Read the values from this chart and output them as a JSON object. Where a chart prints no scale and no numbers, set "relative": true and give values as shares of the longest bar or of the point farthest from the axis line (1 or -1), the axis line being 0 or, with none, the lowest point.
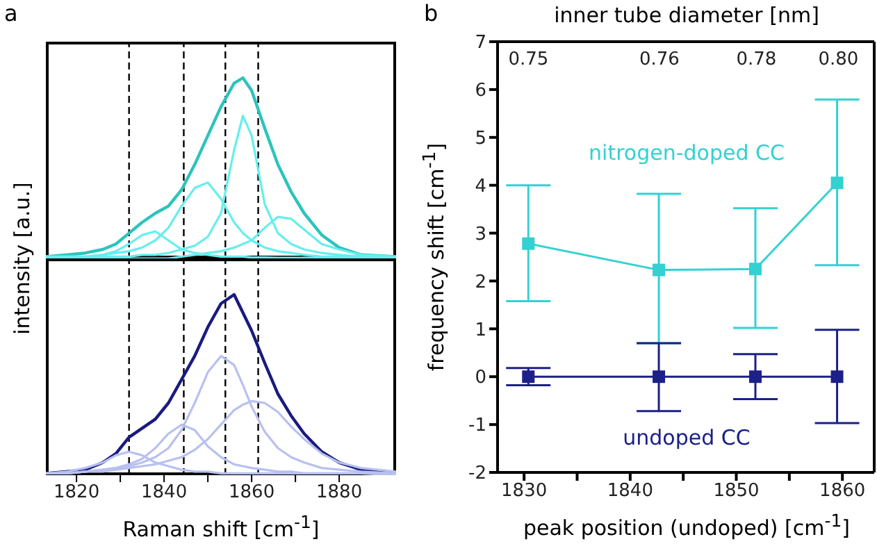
{
  "chart_data": [
    {
      "type": "line",
      "title": "a",
      "ylabel": "intensity [a.u.]",
      "relative": true,
      "x": [
        1813,
        1818,
        1822,
        1826,
        1829,
        1832,
        1835,
        1838,
        1841,
        1844,
        1847,
        1850,
        1853,
        1856,
        1858,
        1860,
        1863,
        1866,
        1869,
        1872,
        1876,
        1880,
        1885,
        1893
      ],
      "xlim": [
        1813,
        1893
      ],
      "xticks": [
        1820,
        1840,
        1860,
        1880
      ],
      "tick_labels": false,
      "marker": "none",
      "line_style": "solid",
      "series": [
        {
          "color": "#2cc4bc",
          "values": [
            0.01,
            0.02,
            0.03,
            0.05,
            0.08,
            0.14,
            0.2,
            0.25,
            0.29,
            0.38,
            0.52,
            0.68,
            0.84,
            0.97,
            1.0,
            0.93,
            0.72,
            0.52,
            0.37,
            0.25,
            0.13,
            0.06,
            0.02,
            0.01
          ]
        },
        {
          "color": "#66eeee",
          "values": [
            0.003,
            0.005,
            0.01,
            0.02,
            0.04,
            0.08,
            0.13,
            0.15,
            0.1,
            0.05,
            0.03,
            0.02,
            0.01,
            0.01,
            0.01,
            0.005,
            0.005,
            0.003,
            0.003,
            0.003,
            0.003,
            0.003,
            0.003,
            0.003
          ]
        },
        {
          "color": "#66eeee",
          "values": [
            0.01,
            0.01,
            0.01,
            0.02,
            0.03,
            0.04,
            0.06,
            0.1,
            0.17,
            0.29,
            0.39,
            0.42,
            0.33,
            0.2,
            0.14,
            0.1,
            0.06,
            0.04,
            0.03,
            0.02,
            0.01,
            0.01,
            0.01,
            0
          ]
        },
        {
          "color": "#66eeee",
          "values": [
            0.01,
            0.01,
            0.01,
            0.01,
            0.01,
            0.01,
            0.02,
            0.02,
            0.03,
            0.05,
            0.07,
            0.12,
            0.25,
            0.6,
            0.79,
            0.68,
            0.3,
            0.14,
            0.08,
            0.05,
            0.03,
            0.02,
            0.01,
            0.01
          ]
        },
        {
          "color": "#66eeee",
          "values": [
            0,
            0,
            0,
            0,
            0,
            0,
            0,
            0,
            0,
            0.01,
            0.02,
            0.03,
            0.04,
            0.06,
            0.08,
            0.1,
            0.17,
            0.23,
            0.22,
            0.16,
            0.08,
            0.05,
            0.02,
            0.01
          ]
        }
      ],
      "ref_lines": [
        {
          "axis": "x",
          "value": 1832,
          "color": "#000000",
          "line_style": "dashed"
        },
        {
          "axis": "x",
          "value": 1844.5,
          "color": "#000000",
          "line_style": "dashed"
        },
        {
          "axis": "x",
          "value": 1854,
          "color": "#000000",
          "line_style": "dashed"
        },
        {
          "axis": "x",
          "value": 1861.5,
          "color": "#000000",
          "line_style": "dashed"
        }
      ]
    },
    {
      "type": "line",
      "xlabel": "Raman shift [cm$^{-1}$]",
      "relative": true,
      "x": [
        1813,
        1818,
        1822,
        1826,
        1829,
        1832,
        1835,
        1838,
        1841,
        1844,
        1847,
        1850,
        1853,
        1856,
        1858,
        1860,
        1863,
        1866,
        1869,
        1872,
        1876,
        1880,
        1885,
        1893
      ],
      "xlim": [
        1813,
        1893
      ],
      "xticks": [
        1820,
        {
          "value": 1830,
          "label": null
        },
        1840,
        {
          "value": 1850,
          "label": null
        },
        1860,
        {
          "value": 1870,
          "label": null
        },
        1880
      ],
      "tick_labels": "x",
      "marker": "none",
      "line_style": "solid",
      "series": [
        {
          "color": "#1a1a80",
          "values": [
            0.01,
            0.02,
            0.03,
            0.07,
            0.12,
            0.21,
            0.26,
            0.31,
            0.4,
            0.53,
            0.66,
            0.82,
            0.95,
            1.0,
            0.9,
            0.8,
            0.62,
            0.45,
            0.33,
            0.23,
            0.13,
            0.07,
            0.03,
            0.01
          ]
        },
        {
          "color": "#b8c0f0",
          "values": [
            0.01,
            0.02,
            0.04,
            0.07,
            0.11,
            0.13,
            0.11,
            0.07,
            0.05,
            0.03,
            0.02,
            0.02,
            0.01,
            0.01,
            0.01,
            0.01,
            0.01,
            0.01,
            0.01,
            0.01,
            0.01,
            0.01,
            0.01,
            0
          ]
        },
        {
          "color": "#b8c0f0",
          "values": [
            0.01,
            0.01,
            0.02,
            0.03,
            0.04,
            0.06,
            0.09,
            0.15,
            0.23,
            0.28,
            0.25,
            0.16,
            0.1,
            0.06,
            0.05,
            0.04,
            0.03,
            0.02,
            0.02,
            0.01,
            0.01,
            0.01,
            0.01,
            0.01
          ]
        },
        {
          "color": "#b8c0f0",
          "values": [
            0.01,
            0.01,
            0.02,
            0.03,
            0.04,
            0.05,
            0.07,
            0.1,
            0.15,
            0.25,
            0.4,
            0.57,
            0.66,
            0.61,
            0.5,
            0.38,
            0.24,
            0.15,
            0.1,
            0.07,
            0.04,
            0.03,
            0.02,
            0.01
          ]
        },
        {
          "color": "#b8c0f0",
          "values": [
            0.01,
            0.01,
            0.02,
            0.02,
            0.03,
            0.04,
            0.05,
            0.06,
            0.08,
            0.1,
            0.14,
            0.2,
            0.28,
            0.36,
            0.39,
            0.41,
            0.4,
            0.35,
            0.27,
            0.2,
            0.12,
            0.07,
            0.04,
            0.02
          ]
        }
      ],
      "ref_lines": [
        {
          "axis": "x",
          "value": 1832,
          "color": "#000000",
          "line_style": "dashed"
        },
        {
          "axis": "x",
          "value": 1844.5,
          "color": "#000000",
          "line_style": "dashed"
        },
        {
          "axis": "x",
          "value": 1854,
          "color": "#000000",
          "line_style": "dashed"
        },
        {
          "axis": "x",
          "value": 1861.5,
          "color": "#000000",
          "line_style": "dashed"
        }
      ]
    },
    {
      "type": "line",
      "title": "b",
      "xlabel": "peak position (undoped) [cm$^{-1}$]",
      "ylabel": "frequency shift [cm$^{-1}$]",
      "x2label": "inner tube diameter [nm]",
      "x": [
        1830.4,
        1842.7,
        1851.8,
        1859.5
      ],
      "xlim": [
        1827.5,
        1863
      ],
      "xticks": [
        1830,
        {
          "value": 1835,
          "label": null
        },
        1840,
        {
          "value": 1845,
          "label": null
        },
        1850,
        {
          "value": 1855,
          "label": null
        },
        1860
      ],
      "annotations": [
        "0.75",
        "0.76",
        "0.78",
        "0.80"
      ],
      "ylim": [
        -2,
        7
      ],
      "yticks": [
        -2,
        -1,
        0,
        1,
        2,
        3,
        4,
        5,
        6,
        7
      ],
      "marker": "square",
      "line_style": "solid",
      "series": [
        {
          "name": "nitrogen-doped CC",
          "color": "#33d1d1",
          "values": [
            2.78,
            2.23,
            2.25,
            4.05
          ],
          "errors": [
            [
              1.58,
              4.0
            ],
            [
              0.7,
              3.82
            ],
            [
              1.02,
              3.52
            ],
            [
              2.33,
              5.79
            ]
          ]
        },
        {
          "name": "undoped CC",
          "color": "#1c2088",
          "values": [
            0,
            0,
            0,
            0
          ],
          "errors": [
            [
              -0.18,
              0.18
            ],
            [
              -0.72,
              0.7
            ],
            [
              -0.47,
              0.47
            ],
            [
              -0.97,
              0.98
            ]
          ]
        }
      ]
    }
  ]
}
